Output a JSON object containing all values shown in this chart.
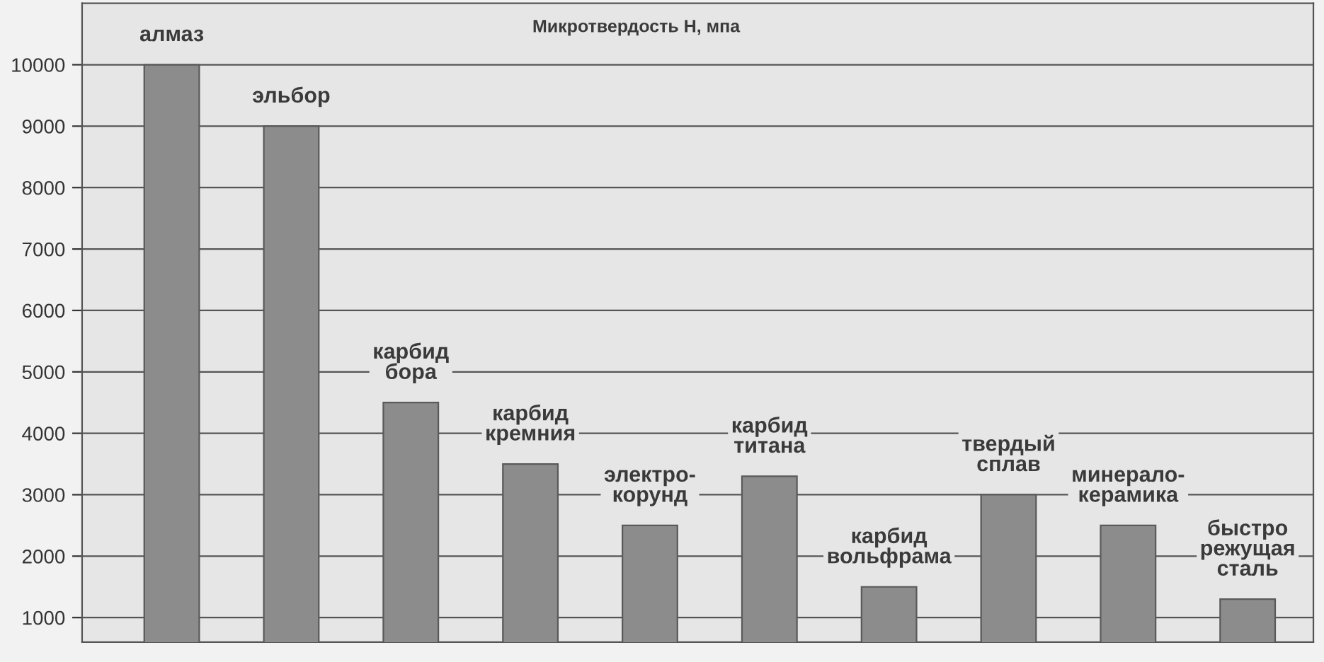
{
  "chart_data": {
    "type": "bar",
    "title": "Микротвердость Н, мпа",
    "categories": [
      "алмаз",
      "эльбор",
      "карбид\nбора",
      "карбид\nкремния",
      "электро-\nкорунд",
      "карбид\nтитана",
      "карбид\nвольфрама",
      "твердый\nсплав",
      "минерало-\nкерамика",
      "быстро\nрежущая\nсталь"
    ],
    "values": [
      10000,
      9000,
      4500,
      3500,
      2500,
      3300,
      1500,
      3000,
      2500,
      1300
    ],
    "color": "#8c8c8c",
    "ylim": [
      600,
      11000
    ],
    "yticks": [
      1000,
      2000,
      3000,
      4000,
      5000,
      6000,
      7000,
      8000,
      9000,
      10000
    ],
    "grid": "y",
    "legend": false
  }
}
